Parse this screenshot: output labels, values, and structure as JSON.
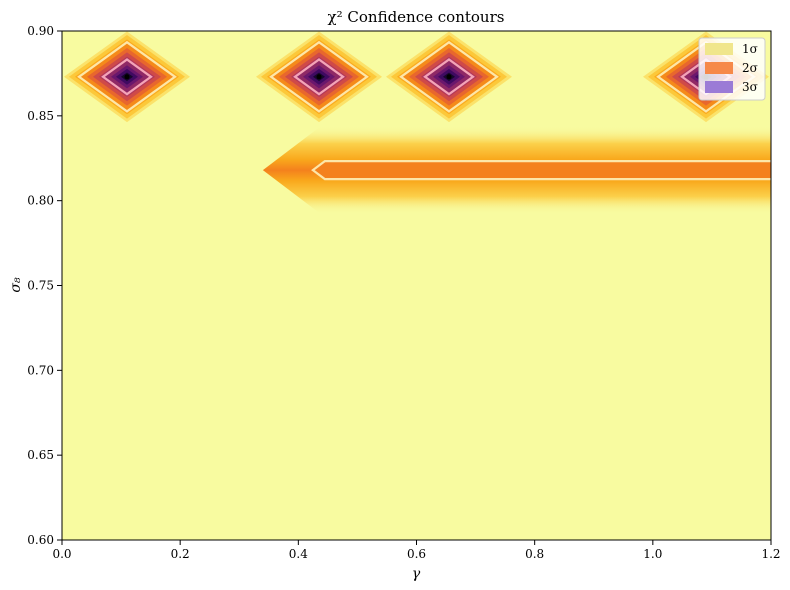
{
  "chart_data": {
    "type": "heatmap",
    "title": "χ² Confidence contours",
    "xlabel": "γ",
    "ylabel": "σ₈",
    "xlim": [
      0.0,
      1.2
    ],
    "ylim": [
      0.6,
      0.9
    ],
    "x_ticks": [
      "0.0",
      "0.2",
      "0.4",
      "0.6",
      "0.8",
      "1.0",
      "1.2"
    ],
    "x_tick_values": [
      0.0,
      0.2,
      0.4,
      0.6,
      0.8,
      1.0,
      1.2
    ],
    "y_ticks": [
      "0.60",
      "0.65",
      "0.70",
      "0.75",
      "0.80",
      "0.85",
      "0.90"
    ],
    "y_tick_values": [
      0.6,
      0.65,
      0.7,
      0.75,
      0.8,
      0.85,
      0.9
    ],
    "grid": false,
    "colormap": "inferno",
    "background_color": "#f8fba0",
    "legend": {
      "position": "top-right",
      "entries": [
        {
          "label": "1σ",
          "color": "#f0e68c"
        },
        {
          "label": "2σ",
          "color": "#f6894a"
        },
        {
          "label": "3σ",
          "color": "#9b7bd6"
        }
      ]
    },
    "minima": [
      {
        "gamma": 0.11,
        "sigma8": 0.873
      },
      {
        "gamma": 0.435,
        "sigma8": 0.873
      },
      {
        "gamma": 0.655,
        "sigma8": 0.873
      },
      {
        "gamma": 1.09,
        "sigma8": 0.873
      }
    ],
    "valley": {
      "gamma_start": 0.34,
      "gamma_end": 1.2,
      "sigma8": 0.818
    }
  }
}
